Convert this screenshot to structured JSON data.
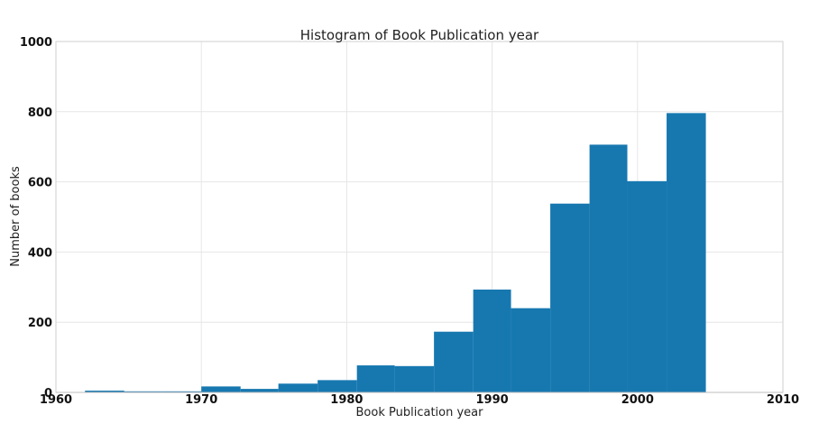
{
  "chart_data": {
    "type": "bar",
    "title": "Histogram of Book Publication year",
    "xlabel": "Book Publication year",
    "ylabel": "Number of books",
    "xlim": [
      1960,
      2010
    ],
    "ylim": [
      0,
      1000
    ],
    "grid": true,
    "bar_color": "#1778b0",
    "x_ticks": [
      "1960",
      "1970",
      "1980",
      "1990",
      "2000",
      "2010"
    ],
    "y_ticks": [
      "0",
      "200",
      "400",
      "600",
      "800",
      "1000"
    ],
    "bins": [
      {
        "start": 1962.0,
        "end": 1964.7,
        "value": 5
      },
      {
        "start": 1964.7,
        "end": 1967.3,
        "value": 3
      },
      {
        "start": 1967.3,
        "end": 1970.0,
        "value": 3
      },
      {
        "start": 1970.0,
        "end": 1972.7,
        "value": 17
      },
      {
        "start": 1972.7,
        "end": 1975.3,
        "value": 10
      },
      {
        "start": 1975.3,
        "end": 1978.0,
        "value": 25
      },
      {
        "start": 1978.0,
        "end": 1980.7,
        "value": 35
      },
      {
        "start": 1980.7,
        "end": 1983.3,
        "value": 77
      },
      {
        "start": 1983.3,
        "end": 1986.0,
        "value": 75
      },
      {
        "start": 1986.0,
        "end": 1988.7,
        "value": 173
      },
      {
        "start": 1988.7,
        "end": 1991.3,
        "value": 293
      },
      {
        "start": 1991.3,
        "end": 1994.0,
        "value": 240
      },
      {
        "start": 1994.0,
        "end": 1996.7,
        "value": 538
      },
      {
        "start": 1996.7,
        "end": 1999.3,
        "value": 706
      },
      {
        "start": 1999.3,
        "end": 2002.0,
        "value": 602
      },
      {
        "start": 2002.0,
        "end": 2004.7,
        "value": 796
      }
    ]
  }
}
